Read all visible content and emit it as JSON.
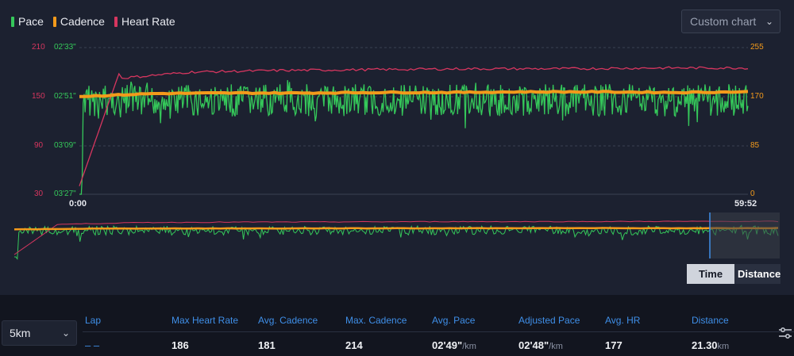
{
  "legend": [
    {
      "label": "Pace",
      "color": "#35c85a"
    },
    {
      "label": "Cadence",
      "color": "#f39a1b"
    },
    {
      "label": "Heart Rate",
      "color": "#d6365f"
    }
  ],
  "custom_chart": {
    "label": "Custom chart",
    "icon": "chevron-down-icon"
  },
  "axes": {
    "heart_rate": [
      "210",
      "150",
      "90",
      "30"
    ],
    "pace": [
      "02'33\"",
      "02'51\"",
      "03'09\"",
      "03'27\""
    ],
    "cadence": [
      "255",
      "170",
      "85",
      "0"
    ],
    "time_start": "0:00",
    "time_end": "59:52"
  },
  "chart_data": {
    "type": "line",
    "x_range": [
      "0:00",
      "59:52"
    ],
    "series": [
      {
        "name": "Pace",
        "note": "high-frequency noise around 02'51\"/km"
      },
      {
        "name": "Cadence",
        "values_approx": [
          170,
          175,
          176,
          176,
          177,
          177,
          178,
          178,
          177,
          178
        ]
      },
      {
        "name": "Heart Rate",
        "values_approx": [
          40,
          120,
          170,
          180,
          182,
          183,
          184,
          184,
          185,
          185
        ]
      }
    ],
    "ylim_hr": [
      30,
      210
    ],
    "ylim_cadence": [
      0,
      255
    ],
    "pace_range": [
      "02'33\"",
      "03'27\""
    ]
  },
  "toggle": {
    "time": "Time",
    "distance": "Distance"
  },
  "lap_select": {
    "value": "5km",
    "icon": "chevron-down-icon"
  },
  "table": {
    "headers": [
      "Lap",
      "Max Heart Rate",
      "Avg. Cadence",
      "Max. Cadence",
      "Avg. Pace",
      "Adjusted Pace",
      "Avg. HR",
      "Distance"
    ],
    "row": {
      "lap": "– –",
      "max_hr": "186",
      "avg_cadence": "181",
      "max_cadence": "214",
      "avg_pace": "02'49\"",
      "avg_pace_unit": "/km",
      "adjusted_pace": "02'48\"",
      "adjusted_pace_unit": "/km",
      "avg_hr": "177",
      "distance": "21.30",
      "distance_unit": "km"
    }
  }
}
